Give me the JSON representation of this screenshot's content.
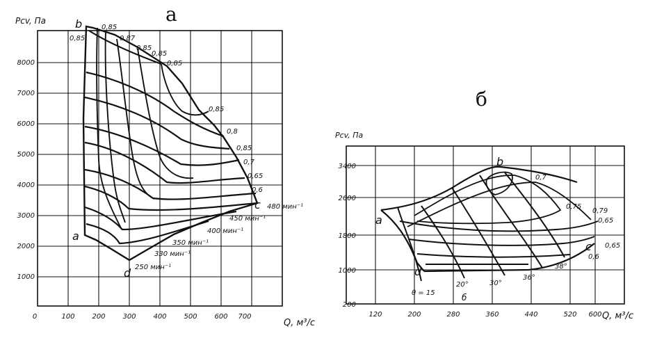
{
  "chart_data": [
    {
      "type": "line",
      "panel_label": "а",
      "ylabel": "Pсv, Па",
      "xlabel": "Q, м³/с",
      "x_ticks": [
        "0",
        "100",
        "200",
        "300",
        "400",
        "500",
        "600",
        "700"
      ],
      "y_ticks": [
        "1000",
        "2000",
        "3000",
        "4000",
        "5000",
        "6000",
        "7000",
        "8000"
      ],
      "corner_labels": [
        "a",
        "b",
        "c",
        "d"
      ],
      "efficiency_labels": [
        "0,85",
        "0,85",
        "0,87",
        "0,85",
        "0,85",
        "0,85",
        "0,85",
        "0,8",
        "0,85",
        "0,7",
        "0,65",
        "0,6"
      ],
      "speed_labels": [
        "480 мин⁻¹",
        "450 мин⁻¹",
        "400 мин⁻¹",
        "350 мин⁻¹",
        "330 мин⁻¹",
        "250 мин⁻¹"
      ]
    },
    {
      "type": "line",
      "panel_label": "б",
      "ylabel": "Pсv, Па",
      "xlabel": "Q, м³/с",
      "x_ticks": [
        "120",
        "200",
        "280",
        "360",
        "440",
        "520",
        "600"
      ],
      "y_ticks": [
        "200",
        "1000",
        "1800",
        "2600",
        "3400"
      ],
      "corner_labels": [
        "a",
        "b",
        "c",
        "d"
      ],
      "efficiency_labels": [
        "0,7",
        "0,75",
        "0,79",
        "0,65",
        "0,65",
        "0,6"
      ],
      "angle_labels": [
        "θ = 15",
        "20°",
        "30°",
        "36°",
        "38°"
      ],
      "extra_labels": [
        "б"
      ]
    }
  ]
}
